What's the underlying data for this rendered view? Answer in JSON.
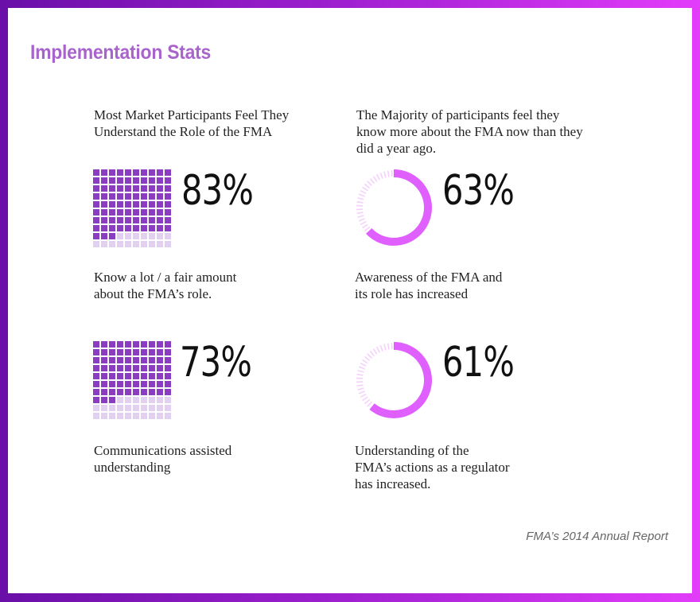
{
  "title": "Implementation Stats",
  "footer": "FMA’s 2014 Annual Report",
  "colors": {
    "waffle_filled": "#8a3dc0",
    "waffle_empty": "#e2d0f0",
    "donut_filled": "#e060ff",
    "donut_empty": "#f6d0fc",
    "title": "#a864cc"
  },
  "sections": [
    {
      "heading": "Most Market Participants Feel They Understand the Role of the FMA",
      "heading_lines": [
        "Most Market Participants Feel They",
        "Understand the Role of the FMA"
      ]
    },
    {
      "heading": "The Majority of participants feel they know more about the FMA now than they did a year ago.",
      "heading_lines": [
        "The Majority of participants feel they",
        "know more about the FMA now than they",
        "did a year ago."
      ]
    }
  ],
  "stats": [
    {
      "label": "83%",
      "caption_lines": [
        "Know a lot / a fair amount",
        "about the FMA’s role."
      ]
    },
    {
      "label": "63%",
      "caption_lines": [
        "Awareness of the FMA and",
        "its role has increased"
      ]
    },
    {
      "label": "73%",
      "caption_lines": [
        "Communications assisted",
        "understanding"
      ]
    },
    {
      "label": "61%",
      "caption_lines": [
        "Understanding of the",
        "FMA’s actions as a regulator",
        "has increased."
      ]
    }
  ],
  "chart_data": [
    {
      "type": "waffle",
      "title": "Know a lot / a fair amount about the FMA’s role.",
      "value": 83,
      "total": 100,
      "grid": [
        10,
        10
      ],
      "unit": "%"
    },
    {
      "type": "pie",
      "variant": "donut",
      "title": "Awareness of the FMA and its role has increased",
      "value": 63,
      "total": 100,
      "unit": "%"
    },
    {
      "type": "waffle",
      "title": "Communications assisted understanding",
      "value": 73,
      "total": 100,
      "grid": [
        10,
        10
      ],
      "unit": "%"
    },
    {
      "type": "pie",
      "variant": "donut",
      "title": "Understanding of the FMA’s actions as a regulator has increased.",
      "value": 61,
      "total": 100,
      "unit": "%"
    }
  ]
}
